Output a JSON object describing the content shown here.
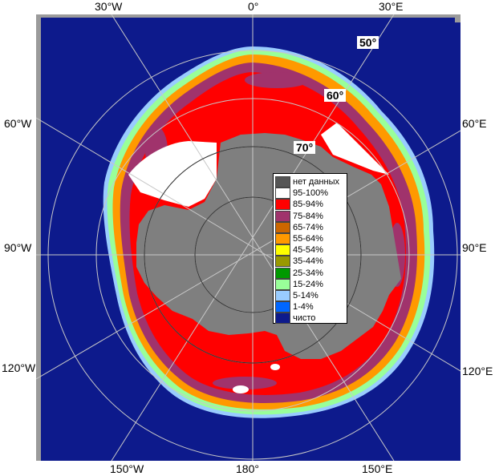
{
  "map": {
    "meridian_labels_top": [
      "30°W",
      "0°",
      "30°E"
    ],
    "meridian_labels_bottom": [
      "150°W",
      "180°",
      "150°E"
    ],
    "meridian_labels_left": [
      "60°W",
      "90°W",
      "120°W"
    ],
    "meridian_labels_right": [
      "60°E",
      "90°E",
      "120°E"
    ],
    "latitude_labels": [
      "50°",
      "60°",
      "70°"
    ],
    "colors": {
      "ocean": "#0d1a8c",
      "land": "#7f7f7f",
      "frame": "#9b9b9b",
      "grid": "#c8c8c8"
    }
  },
  "legend": {
    "items": [
      {
        "label": "нет данных",
        "color": "#555555"
      },
      {
        "label": "95-100%",
        "color": "#ffffff"
      },
      {
        "label": "85-94%",
        "color": "#ff0000"
      },
      {
        "label": "75-84%",
        "color": "#a0336c"
      },
      {
        "label": "65-74%",
        "color": "#cc6600"
      },
      {
        "label": "55-64%",
        "color": "#ff9900"
      },
      {
        "label": "45-54%",
        "color": "#ffff00"
      },
      {
        "label": "35-44%",
        "color": "#999900"
      },
      {
        "label": "25-34%",
        "color": "#009900"
      },
      {
        "label": "15-24%",
        "color": "#99ff99"
      },
      {
        "label": "5-14%",
        "color": "#99ccff"
      },
      {
        "label": "1-4%",
        "color": "#0066ff"
      },
      {
        "label": "чисто",
        "color": "#0d1a8c"
      }
    ]
  }
}
